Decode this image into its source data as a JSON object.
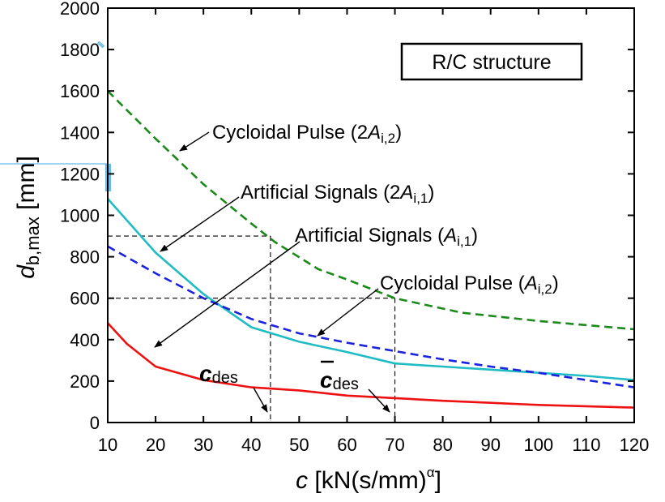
{
  "chart_data": {
    "type": "line",
    "xlabel": {
      "symbol": "c",
      "unit": " [kN(s/mm)",
      "exp": "α",
      "close": "]"
    },
    "ylabel": {
      "symbol": "d",
      "sub": "b,max",
      "unit": " [mm]"
    },
    "xlim": [
      10,
      120
    ],
    "ylim": [
      0,
      2000
    ],
    "xticks": [
      10,
      20,
      30,
      40,
      50,
      60,
      70,
      80,
      90,
      100,
      110,
      120
    ],
    "yticks": [
      0,
      200,
      400,
      600,
      800,
      1000,
      1200,
      1400,
      1600,
      1800,
      2000
    ],
    "grid": false,
    "box_label": "R/C structure",
    "series": [
      {
        "key": "cyc2",
        "color": "#1a8a1a",
        "dash": "dashed",
        "x": [
          10,
          20,
          30,
          40,
          45,
          54,
          60,
          70,
          84,
          100,
          120
        ],
        "y": [
          1600,
          1370,
          1150,
          960,
          870,
          740,
          690,
          600,
          530,
          490,
          450
        ]
      },
      {
        "key": "art2",
        "color": "#20bcc4",
        "dash": "solid",
        "x": [
          10,
          20,
          30,
          40,
          50,
          60,
          70,
          80,
          90,
          100,
          110,
          120
        ],
        "y": [
          1080,
          820,
          620,
          460,
          390,
          340,
          285,
          270,
          255,
          240,
          225,
          205
        ]
      },
      {
        "key": "art1",
        "color": "#1a22dd",
        "dash": "dashed",
        "x": [
          10,
          20,
          30,
          40,
          50,
          60,
          70,
          80,
          90,
          100,
          110,
          120
        ],
        "y": [
          850,
          720,
          600,
          500,
          430,
          385,
          345,
          305,
          270,
          240,
          205,
          170
        ]
      },
      {
        "key": "cyc1",
        "color": "#ee1111",
        "dash": "solid",
        "x": [
          10,
          14,
          20,
          30,
          40,
          50,
          60,
          70,
          80,
          90,
          100,
          120
        ],
        "y": [
          480,
          380,
          270,
          205,
          170,
          155,
          130,
          118,
          105,
          95,
          85,
          72
        ]
      }
    ],
    "reference_lines": {
      "y_levels": [
        900,
        600
      ],
      "x_levels": [
        44,
        70
      ]
    },
    "annotations": [
      {
        "name": "label-cyc2",
        "prefix": "Cycloidal Pulse (2",
        "sym": "A",
        "sub": "i,2",
        "suffix": ")"
      },
      {
        "name": "label-art2",
        "prefix": "Artificial Signals (2",
        "sym": "A",
        "sub": "i,1",
        "suffix": ")"
      },
      {
        "name": "label-art1",
        "prefix": "Artificial Signals (",
        "sym": "A",
        "sub": "i,1",
        "suffix": ")"
      },
      {
        "name": "label-cyc1",
        "prefix": "Cycloidal Pulse (",
        "sym": "A",
        "sub": "i,2",
        "suffix": ")"
      }
    ],
    "c_des": {
      "sym": "c",
      "sub": "des"
    },
    "c_des_bar": {
      "sym": "c",
      "sub": "des"
    }
  }
}
